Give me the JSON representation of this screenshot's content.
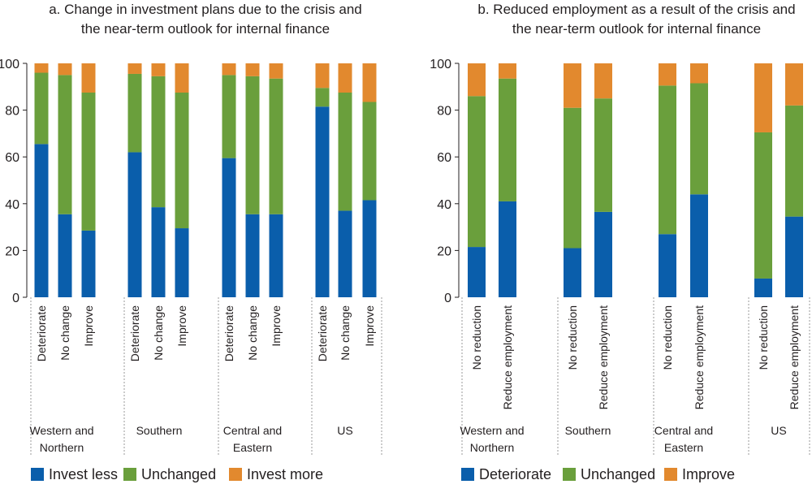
{
  "colors": {
    "blue": "#0a5eab",
    "green": "#6a9f3c",
    "orange": "#e2892e",
    "axis": "#231f20",
    "divider": "#9a9a9a"
  },
  "chart_data": [
    {
      "type": "bar",
      "stacked": true,
      "title": [
        "a. Change in investment plans due to the crisis and",
        "the near-term outlook for internal finance"
      ],
      "ylim": [
        0,
        100
      ],
      "yticks": [
        "0",
        "20",
        "40",
        "60",
        "80",
        "100"
      ],
      "groups": [
        {
          "name": [
            "Western and",
            "Northern"
          ],
          "categories": [
            "Deteriorate",
            "No change",
            "Improve"
          ]
        },
        {
          "name": [
            "Southern"
          ],
          "categories": [
            "Deteriorate",
            "No change",
            "Improve"
          ]
        },
        {
          "name": [
            "Central and",
            "Eastern"
          ],
          "categories": [
            "Deteriorate",
            "No change",
            "Improve"
          ]
        },
        {
          "name": [
            "US"
          ],
          "categories": [
            "Deteriorate",
            "No change",
            "Improve"
          ]
        }
      ],
      "series": [
        {
          "name": "Invest less",
          "color": "blue",
          "values": [
            [
              65.5,
              35.5,
              28.5
            ],
            [
              62,
              38.5,
              29.5
            ],
            [
              59.5,
              35.5,
              35.5
            ],
            [
              81.5,
              37,
              41.5
            ]
          ]
        },
        {
          "name": "Unchanged",
          "color": "green",
          "values": [
            [
              30.5,
              59.5,
              59
            ],
            [
              33.5,
              56,
              58
            ],
            [
              35.5,
              59,
              58
            ],
            [
              8,
              50.5,
              42
            ]
          ]
        },
        {
          "name": "Invest more",
          "color": "orange",
          "values": [
            [
              4,
              5,
              12.5
            ],
            [
              4.5,
              5.5,
              12.5
            ],
            [
              5,
              5.5,
              6.5
            ],
            [
              10.5,
              12.5,
              16.5
            ]
          ]
        }
      ],
      "legend": [
        {
          "label": "Invest less",
          "color": "blue"
        },
        {
          "label": "Unchanged",
          "color": "green"
        },
        {
          "label": "Invest more",
          "color": "orange"
        }
      ]
    },
    {
      "type": "bar",
      "stacked": true,
      "title": [
        "b. Reduced employment as a result of the crisis and",
        "the near-term outlook for internal finance"
      ],
      "ylim": [
        0,
        100
      ],
      "yticks": [
        "0",
        "20",
        "40",
        "60",
        "80",
        "100"
      ],
      "groups": [
        {
          "name": [
            "Western and",
            "Northern"
          ],
          "categories": [
            "No reduction",
            "Reduce employment"
          ]
        },
        {
          "name": [
            "Southern"
          ],
          "categories": [
            "No reduction",
            "Reduce employment"
          ]
        },
        {
          "name": [
            "Central and",
            "Eastern"
          ],
          "categories": [
            "No reduction",
            "Reduce employment"
          ]
        },
        {
          "name": [
            "US"
          ],
          "categories": [
            "No reduction",
            "Reduce employment"
          ]
        }
      ],
      "series": [
        {
          "name": "Deteriorate",
          "color": "blue",
          "values": [
            [
              21.5,
              41
            ],
            [
              21,
              36.5
            ],
            [
              27,
              44
            ],
            [
              8,
              34.5
            ]
          ]
        },
        {
          "name": "Unchanged",
          "color": "green",
          "values": [
            [
              64.5,
              52.5
            ],
            [
              60,
              48.5
            ],
            [
              63.5,
              47.5
            ],
            [
              62.5,
              47.5
            ]
          ]
        },
        {
          "name": "Improve",
          "color": "orange",
          "values": [
            [
              14,
              6.5
            ],
            [
              19,
              15
            ],
            [
              9.5,
              8.5
            ],
            [
              29.5,
              18
            ]
          ]
        }
      ],
      "legend": [
        {
          "label": "Deteriorate",
          "color": "blue"
        },
        {
          "label": "Unchanged",
          "color": "green"
        },
        {
          "label": "Improve",
          "color": "orange"
        }
      ]
    }
  ]
}
